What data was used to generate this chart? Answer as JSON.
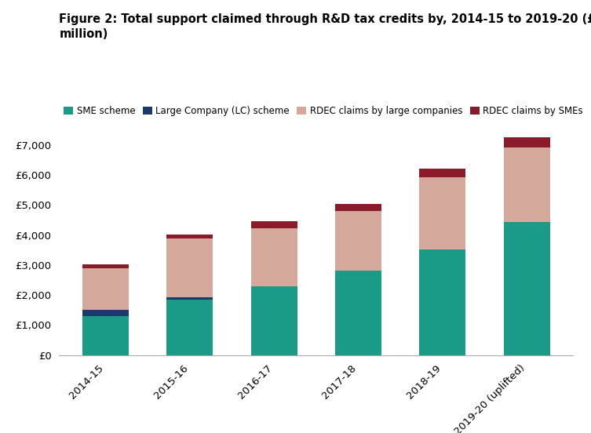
{
  "title": "Figure 2: Total support claimed through R&D tax credits by, 2014-15 to 2019-20 (£\nmillion)",
  "categories": [
    "2014-15",
    "2015-16",
    "2016-17",
    "2017-18",
    "2018-19",
    "2019-20 (uplifted)"
  ],
  "sme_scheme": [
    1300,
    1850,
    2280,
    2800,
    3530,
    4420
  ],
  "lc_scheme": [
    200,
    80,
    0,
    0,
    0,
    0
  ],
  "rdec_large": [
    1400,
    1950,
    1950,
    2000,
    2400,
    2500
  ],
  "rdec_sme": [
    130,
    130,
    230,
    230,
    280,
    330
  ],
  "colors": {
    "sme_scheme": "#1a9b87",
    "lc_scheme": "#1b3a6b",
    "rdec_large": "#d4a89a",
    "rdec_sme": "#8b1a2a"
  },
  "legend_labels": [
    "SME scheme",
    "Large Company (LC) scheme",
    "RDEC claims by large companies",
    "RDEC claims by SMEs"
  ],
  "ylim": [
    0,
    7500
  ],
  "yticks": [
    0,
    1000,
    2000,
    3000,
    4000,
    5000,
    6000,
    7000
  ],
  "ylabel_prefix": "£",
  "background_color": "#ffffff",
  "title_fontsize": 10.5,
  "tick_fontsize": 9.5,
  "legend_fontsize": 8.5,
  "bar_width": 0.55
}
